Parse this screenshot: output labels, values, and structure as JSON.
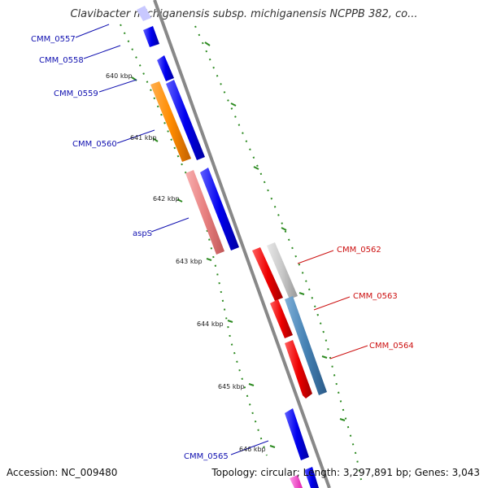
{
  "title": "Clavibacter michiganensis subsp. michiganensis NCPPB 382, co...",
  "footer": {
    "accession": "Accession: NC_009480",
    "topology": "Topology: circular; Length: 3,297,891 bp; Genes: 3,043"
  },
  "colors": {
    "backbone": "#888888",
    "tick": "#2e8b22",
    "blue_gene": "#0000ee",
    "red_gene": "#ee0000",
    "orange_gene": "#ff8c00",
    "salmon_gene": "#e88080",
    "grey_gene": "#c8c8c8",
    "steel_gene": "#4682b4",
    "pink_gene": "#ff44cc",
    "label_blue": "#1010b0",
    "label_red": "#cc1010"
  },
  "ticks": [
    {
      "label": "640 kbp"
    },
    {
      "label": "641 kbp"
    },
    {
      "label": "642 kbp"
    },
    {
      "label": "643 kbp"
    },
    {
      "label": "644 kbp"
    },
    {
      "label": "645 kbp"
    },
    {
      "label": "646 kbp"
    }
  ],
  "gene_labels": [
    {
      "name": "CMM_0557",
      "strand": "left"
    },
    {
      "name": "CMM_0558",
      "strand": "left"
    },
    {
      "name": "CMM_0559",
      "strand": "left"
    },
    {
      "name": "CMM_0560",
      "strand": "left"
    },
    {
      "name": "aspS",
      "strand": "left"
    },
    {
      "name": "CMM_0562",
      "strand": "right"
    },
    {
      "name": "CMM_0563",
      "strand": "right"
    },
    {
      "name": "CMM_0564",
      "strand": "right"
    },
    {
      "name": "CMM_0565",
      "strand": "left"
    }
  ]
}
